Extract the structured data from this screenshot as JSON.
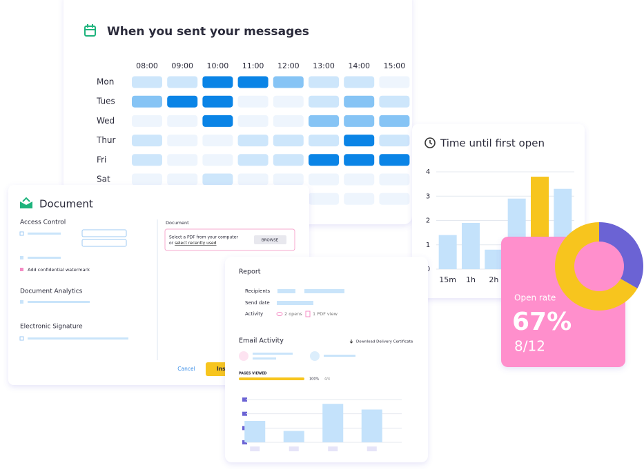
{
  "chart_data": [
    {
      "type": "heatmap",
      "title": "When you sent your messages",
      "x_categories": [
        "08:00",
        "09:00",
        "10:00",
        "11:00",
        "12:00",
        "13:00",
        "14:00",
        "15:00"
      ],
      "y_categories": [
        "Mon",
        "Tues",
        "Wed",
        "Thur",
        "Fri",
        "Sat",
        null
      ],
      "values": [
        [
          1,
          1,
          3,
          3,
          2,
          1,
          1,
          0
        ],
        [
          2,
          3,
          3,
          0,
          0,
          1,
          2,
          1
        ],
        [
          0,
          0,
          3,
          0,
          0,
          2,
          2,
          2
        ],
        [
          1,
          0,
          0,
          1,
          1,
          1,
          3,
          1
        ],
        [
          1,
          0,
          0,
          1,
          1,
          3,
          3,
          3
        ],
        [
          0,
          0,
          1,
          0,
          0,
          0,
          0,
          0
        ],
        [
          0,
          0,
          0,
          0,
          0,
          0,
          0,
          0
        ]
      ],
      "colors": [
        "#eef5fd",
        "#cde6fb",
        "#86c4f5",
        "#0a84e6"
      ]
    },
    {
      "type": "bar",
      "title": "Time until first open",
      "categories": [
        "15m",
        "1h",
        "2h",
        null,
        null,
        null
      ],
      "values": [
        1.4,
        1.9,
        0.8,
        2.9,
        3.8,
        3.3
      ],
      "colors": [
        "#c4e2fb",
        "#c4e2fb",
        "#c4e2fb",
        "#c4e2fb",
        "#f7c51e",
        "#c4e2fb"
      ],
      "ylim": [
        0,
        4
      ],
      "yticks": [
        0,
        1,
        2,
        3,
        4
      ],
      "grid": true
    },
    {
      "type": "bar",
      "categories": [
        null,
        null,
        null,
        null
      ],
      "values": [
        1.5,
        0.8,
        2.7,
        2.3
      ],
      "color": "#c4e2fb",
      "ylim": [
        0,
        3
      ],
      "yticks": [
        0,
        1,
        2,
        3
      ],
      "grid": true
    },
    {
      "type": "pie",
      "values": [
        4,
        8
      ],
      "colors": [
        "#6b63d4",
        "#f7c51e"
      ],
      "hole": true
    }
  ],
  "document_card": {
    "title": "Document",
    "access_control": "Access Control",
    "watermark": "Add confidential watermark",
    "analytics": "Document Analytics",
    "signature": "Electronic Signature",
    "document_label": "Document",
    "upload_text": "Select a PDF from your computer",
    "or": "or",
    "recent_link": "select recently used",
    "browse": "BROWSE",
    "cancel": "Cancel",
    "insert": "Insert"
  },
  "report_card": {
    "title": "Report",
    "recipients": "Recipients",
    "send_date": "Send date",
    "activity": "Activity",
    "opens": "2 opens",
    "pdf_views": "1 PDF view",
    "email_activity": "Email Activity",
    "download": "Download Delivery Certificate",
    "pages_viewed": {
      "label": "PAGES VIEWED",
      "value": 100,
      "value_label": "100%",
      "count": "4/4"
    }
  },
  "open_rate_card": {
    "label": "Open rate",
    "value": 67,
    "value_label": "67%",
    "ratio": "8/12"
  }
}
